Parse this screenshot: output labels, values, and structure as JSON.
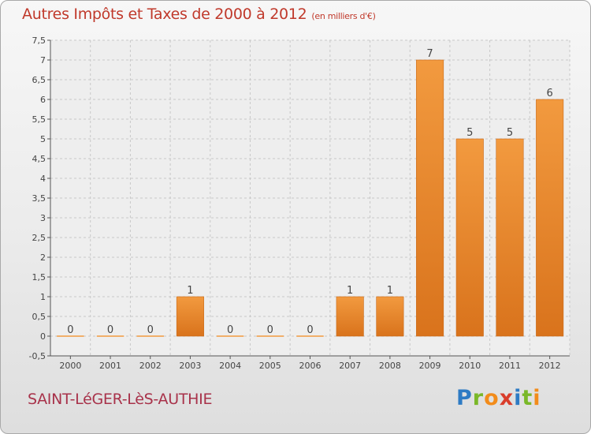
{
  "header": {
    "title": "Autres Impôts et Taxes de 2000 à 2012",
    "unit": "(en milliers d'€)"
  },
  "footer": {
    "commune": "SAINT-LéGER-LèS-AUTHIE",
    "brand_letters": [
      "P",
      "r",
      "o",
      "x",
      "i",
      "t",
      "i"
    ],
    "brand_colors": [
      "#2e7bc4",
      "#7ab829",
      "#f28c1b",
      "#d93d2b",
      "#2e7bc4",
      "#7ab829",
      "#f28c1b"
    ]
  },
  "chart_data": {
    "type": "bar",
    "title": "Autres Impôts et Taxes de 2000 à 2012",
    "xlabel": "",
    "ylabel": "",
    "categories": [
      "2000",
      "2001",
      "2002",
      "2003",
      "2004",
      "2005",
      "2006",
      "2007",
      "2008",
      "2009",
      "2010",
      "2011",
      "2012"
    ],
    "values": [
      0,
      0,
      0,
      1,
      0,
      0,
      0,
      1,
      1,
      7,
      5,
      5,
      6
    ],
    "data_labels": [
      "0",
      "0",
      "0",
      "1",
      "0",
      "0",
      "0",
      "1",
      "1",
      "7",
      "5",
      "5",
      "6"
    ],
    "ylim": [
      -0.5,
      7.5
    ],
    "yticks": [
      "-0,5",
      "0",
      "0,5",
      "1",
      "1,5",
      "2",
      "2,5",
      "3",
      "3,5",
      "4",
      "4,5",
      "5",
      "5,5",
      "6",
      "6,5",
      "7",
      "7,5"
    ],
    "ytick_values": [
      -0.5,
      0,
      0.5,
      1,
      1.5,
      2,
      2.5,
      3,
      3.5,
      4,
      4.5,
      5,
      5.5,
      6,
      6.5,
      7,
      7.5
    ],
    "grid": true,
    "bar_color": "#f29a3f",
    "bar_color_dark": "#d9731c"
  }
}
